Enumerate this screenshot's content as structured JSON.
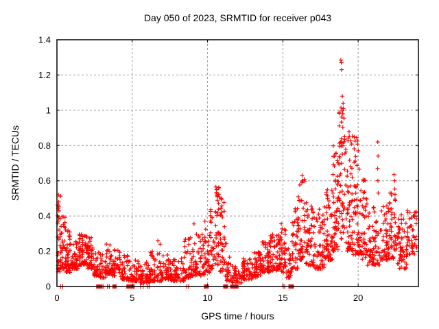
{
  "chart_data": {
    "type": "scatter",
    "title": "Day 050 of 2023, SRMTID for receiver p043",
    "xlabel": "GPS time / hours",
    "ylabel": "SRMTID / TECUs",
    "xlim": [
      0,
      24
    ],
    "ylim": [
      0,
      1.4
    ],
    "xticks": [
      0,
      5,
      10,
      15,
      20
    ],
    "xtick_labels": [
      "0",
      "5",
      "10",
      "15",
      "20"
    ],
    "yticks": [
      0,
      0.2,
      0.4,
      0.6,
      0.8,
      1,
      1.2,
      1.4
    ],
    "ytick_labels": [
      "0",
      "0.2",
      "0.4",
      "0.6",
      "0.8",
      "1",
      "1.2",
      "1.4"
    ],
    "grid": true,
    "legend": "none",
    "marker": "plus",
    "marker_color": "#ff0000",
    "grid_color": "#999999",
    "border_color": "#000000",
    "series_name": "SRMTID for receiver p043",
    "seed": 20230050,
    "envelope_segments": [
      [
        0.02,
        0.25,
        0.08,
        0.52,
        30,
        1.6
      ],
      [
        0.2,
        0.6,
        0.1,
        0.4,
        45,
        2.0
      ],
      [
        0.6,
        1.0,
        0.08,
        0.32,
        45,
        1.8
      ],
      [
        1.0,
        1.45,
        0.1,
        0.28,
        45,
        1.6
      ],
      [
        1.45,
        2.0,
        0.12,
        0.3,
        60,
        1.4
      ],
      [
        2.0,
        2.45,
        0.1,
        0.28,
        45,
        1.6
      ],
      [
        2.45,
        2.85,
        0.06,
        0.2,
        30,
        1.8
      ],
      [
        2.85,
        3.25,
        0.05,
        0.19,
        28,
        1.8
      ],
      [
        3.25,
        3.65,
        0.07,
        0.3,
        35,
        2.0
      ],
      [
        3.65,
        4.2,
        0.06,
        0.22,
        40,
        1.8
      ],
      [
        4.2,
        4.75,
        0.04,
        0.18,
        38,
        2.0
      ],
      [
        4.75,
        5.35,
        0.03,
        0.15,
        42,
        2.0
      ],
      [
        5.35,
        6.2,
        0.02,
        0.16,
        60,
        2.0
      ],
      [
        6.2,
        7.0,
        0.03,
        0.2,
        62,
        2.2
      ],
      [
        7.0,
        7.6,
        0.04,
        0.18,
        52,
        2.0
      ],
      [
        7.6,
        8.45,
        0.03,
        0.16,
        58,
        2.0
      ],
      [
        8.45,
        9.0,
        0.05,
        0.3,
        45,
        2.2
      ],
      [
        9.0,
        9.35,
        0.06,
        0.35,
        30,
        1.8
      ],
      [
        9.35,
        9.8,
        0.06,
        0.3,
        32,
        2.0
      ],
      [
        9.8,
        10.15,
        0.08,
        0.38,
        30,
        1.8
      ],
      [
        10.15,
        10.5,
        0.1,
        0.45,
        30,
        1.7
      ],
      [
        10.5,
        10.8,
        0.12,
        0.57,
        34,
        1.4
      ],
      [
        10.8,
        11.15,
        0.08,
        0.5,
        32,
        1.7
      ],
      [
        11.15,
        11.6,
        0.03,
        0.25,
        26,
        2.0
      ],
      [
        11.6,
        12.3,
        0.02,
        0.12,
        38,
        1.8
      ],
      [
        12.3,
        12.95,
        0.04,
        0.16,
        52,
        1.8
      ],
      [
        12.95,
        13.55,
        0.05,
        0.2,
        56,
        1.8
      ],
      [
        13.55,
        14.15,
        0.08,
        0.26,
        56,
        1.7
      ],
      [
        14.15,
        14.85,
        0.09,
        0.3,
        58,
        1.7
      ],
      [
        14.85,
        15.2,
        0.08,
        0.37,
        36,
        1.8
      ],
      [
        15.2,
        15.6,
        0.05,
        0.22,
        28,
        1.8
      ],
      [
        15.6,
        16.0,
        0.1,
        0.45,
        40,
        1.7
      ],
      [
        16.0,
        16.5,
        0.15,
        0.62,
        46,
        1.5
      ],
      [
        16.5,
        17.1,
        0.12,
        0.5,
        55,
        1.8
      ],
      [
        17.1,
        17.8,
        0.1,
        0.46,
        60,
        1.8
      ],
      [
        17.8,
        18.3,
        0.15,
        0.56,
        56,
        1.6
      ],
      [
        18.3,
        18.7,
        0.2,
        0.82,
        55,
        1.4
      ],
      [
        18.7,
        19.25,
        0.25,
        1.05,
        60,
        1.3
      ],
      [
        19.25,
        19.65,
        0.2,
        0.9,
        52,
        1.5
      ],
      [
        19.65,
        20.1,
        0.18,
        0.85,
        48,
        1.6
      ],
      [
        20.1,
        20.6,
        0.15,
        0.62,
        48,
        1.7
      ],
      [
        20.6,
        21.1,
        0.12,
        0.46,
        44,
        1.8
      ],
      [
        21.1,
        21.45,
        0.12,
        0.4,
        22,
        1.8
      ],
      [
        21.45,
        22.05,
        0.15,
        0.46,
        52,
        1.7
      ],
      [
        22.05,
        22.6,
        0.15,
        0.56,
        50,
        1.7
      ],
      [
        22.6,
        23.25,
        0.1,
        0.42,
        56,
        1.6
      ],
      [
        23.25,
        23.9,
        0.18,
        0.44,
        46,
        1.4
      ]
    ],
    "outlier_points": [
      [
        0.1,
        0.52
      ],
      [
        0.12,
        0.48
      ],
      [
        0.13,
        0.455
      ],
      [
        6.7,
        0.26
      ],
      [
        6.85,
        0.24
      ],
      [
        9.1,
        0.355
      ],
      [
        10.55,
        0.565
      ],
      [
        10.6,
        0.55
      ],
      [
        10.63,
        0.525
      ],
      [
        10.9,
        0.5
      ],
      [
        16.28,
        0.63
      ],
      [
        16.33,
        0.6
      ],
      [
        18.85,
        1.285
      ],
      [
        18.88,
        1.27
      ],
      [
        18.9,
        1.23
      ],
      [
        18.95,
        1.08
      ],
      [
        19.0,
        1.04
      ],
      [
        19.02,
        1.01
      ],
      [
        18.98,
        0.98
      ],
      [
        19.06,
        0.955
      ],
      [
        19.9,
        0.845
      ],
      [
        19.95,
        0.825
      ],
      [
        20.0,
        0.77
      ],
      [
        21.3,
        0.82
      ],
      [
        21.32,
        0.74
      ],
      [
        21.29,
        0.67
      ],
      [
        21.31,
        0.6
      ],
      [
        21.33,
        0.53
      ],
      [
        22.38,
        0.635
      ],
      [
        22.42,
        0.6
      ]
    ],
    "zero_line_markers": [
      [
        0.24,
        1
      ],
      [
        0.38,
        1
      ],
      [
        2.72,
        5
      ],
      [
        2.92,
        5
      ],
      [
        3.1,
        1
      ],
      [
        3.35,
        1
      ],
      [
        3.48,
        1
      ],
      [
        3.82,
        6
      ],
      [
        4.88,
        12
      ],
      [
        5.1,
        2
      ],
      [
        5.55,
        1
      ],
      [
        5.72,
        2
      ],
      [
        6.0,
        1
      ],
      [
        6.12,
        1
      ],
      [
        8.62,
        1
      ],
      [
        8.74,
        1
      ],
      [
        9.92,
        7
      ],
      [
        11.2,
        7
      ],
      [
        11.78,
        12
      ],
      [
        15.02,
        1
      ],
      [
        15.12,
        1
      ],
      [
        15.55,
        8
      ]
    ]
  }
}
